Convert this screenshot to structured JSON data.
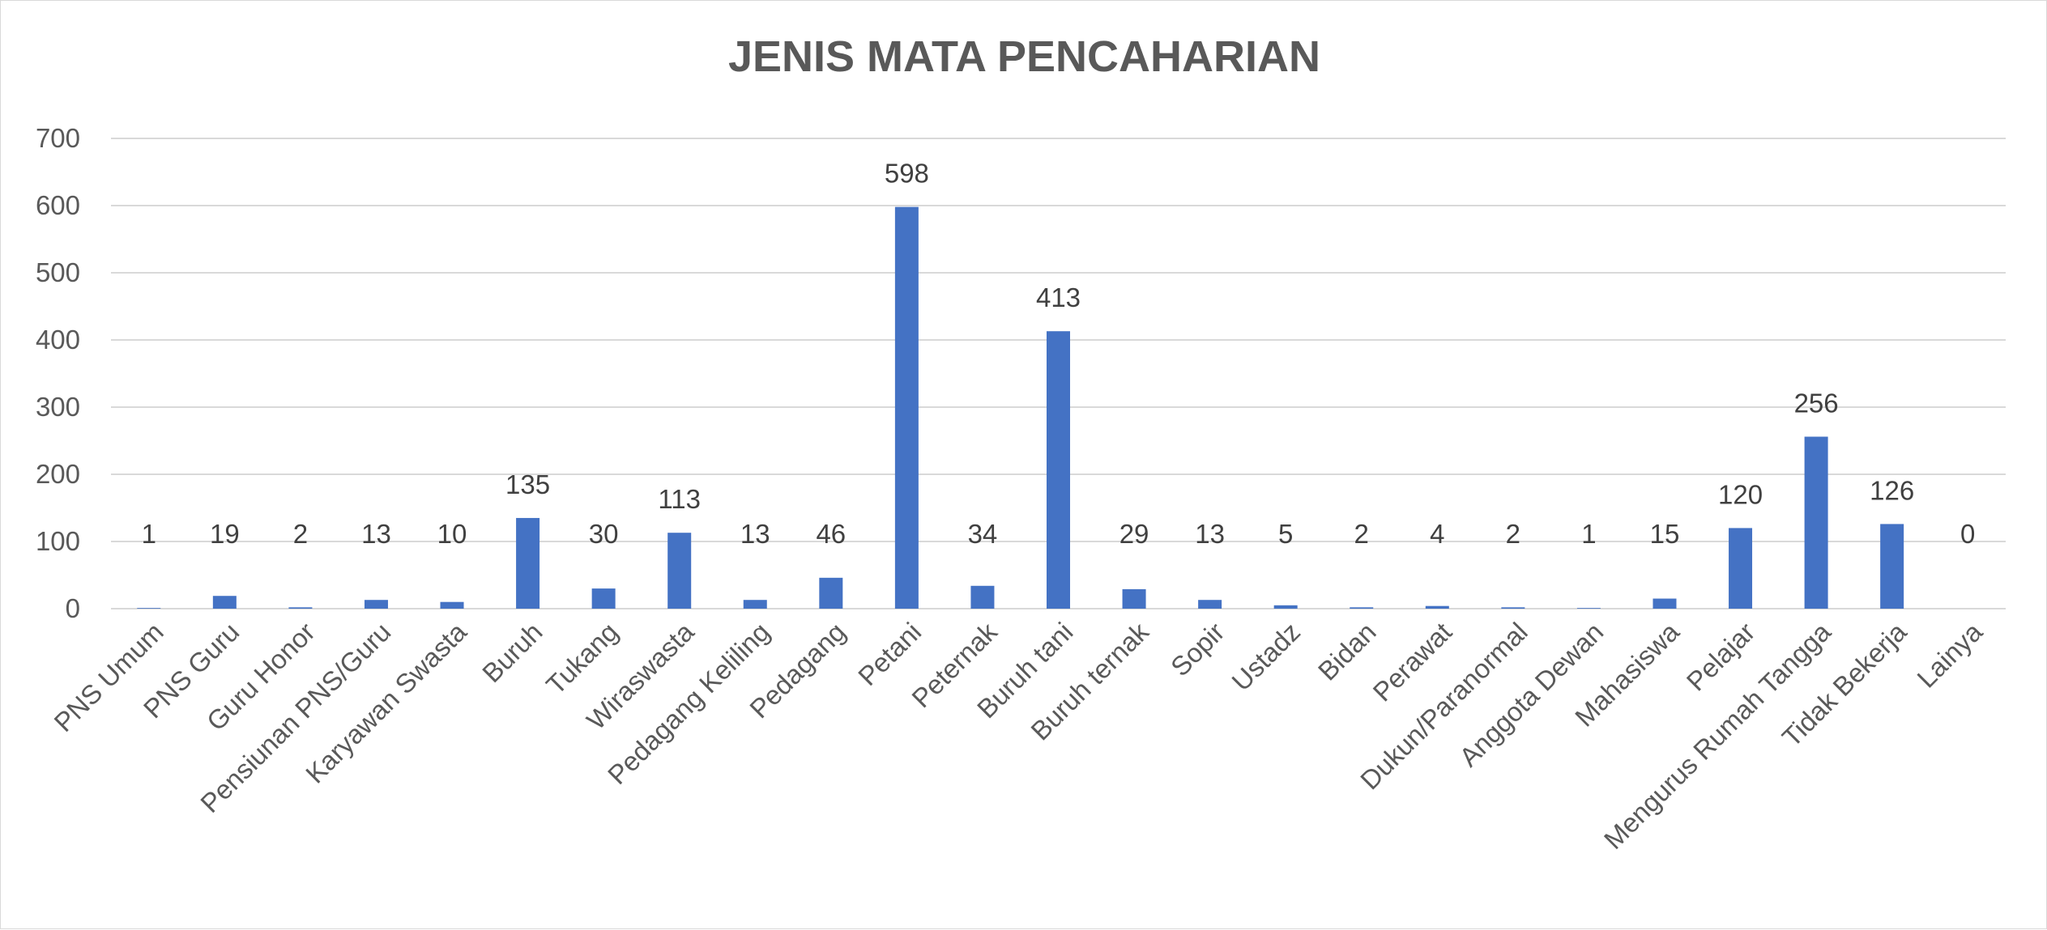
{
  "chart_data": {
    "type": "bar",
    "title": "JENIS MATA PENCAHARIAN",
    "xlabel": "",
    "ylabel": "",
    "ylim": [
      0,
      700
    ],
    "yticks": [
      0,
      100,
      200,
      300,
      400,
      500,
      600,
      700
    ],
    "grid": true,
    "legend": "none",
    "bar_color": "#4472c4",
    "categories": [
      "PNS Umum",
      "PNS Guru",
      "Guru Honor",
      "Pensiunan PNS/Guru",
      "Karyawan Swasta",
      "Buruh",
      "Tukang",
      "Wiraswasta",
      "Pedagang Keliling",
      "Pedagang",
      "Petani",
      "Peternak",
      "Buruh tani",
      "Buruh ternak",
      "Sopir",
      "Ustadz",
      "Bidan",
      "Perawat",
      "Dukun/Paranormal",
      "Anggota Dewan",
      "Mahasiswa",
      "Pelajar",
      "Mengurus Rumah Tangga",
      "Tidak Bekerja",
      "Lainya"
    ],
    "values": [
      1,
      19,
      2,
      13,
      10,
      135,
      30,
      113,
      13,
      46,
      598,
      34,
      413,
      29,
      13,
      5,
      2,
      4,
      2,
      1,
      15,
      120,
      256,
      126,
      0
    ]
  }
}
